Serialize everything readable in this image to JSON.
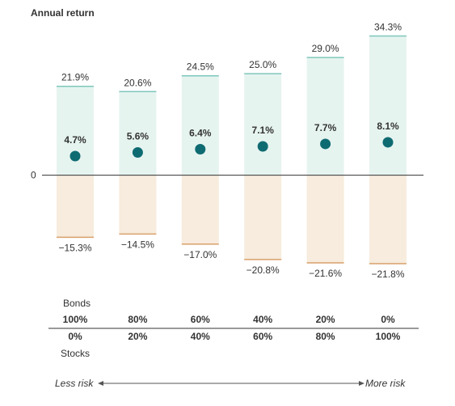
{
  "chart_data": {
    "type": "bar",
    "title": "Annual return",
    "zero_label": "0",
    "ylim": [
      -25,
      36
    ],
    "categories": [
      "100% bonds / 0% stocks",
      "80% bonds / 20% stocks",
      "60% bonds / 40% stocks",
      "40% bonds / 60% stocks",
      "20% bonds / 80% stocks",
      "0% bonds / 100% stocks"
    ],
    "high": [
      21.9,
      20.6,
      24.5,
      25.0,
      29.0,
      34.3
    ],
    "low": [
      -15.3,
      -14.5,
      -17.0,
      -20.8,
      -21.6,
      -21.8
    ],
    "average": [
      4.7,
      5.6,
      6.4,
      7.1,
      7.7,
      8.1
    ],
    "high_labels": [
      "21.9%",
      "20.6%",
      "24.5%",
      "25.0%",
      "29.0%",
      "34.3%"
    ],
    "low_labels": [
      "−15.3%",
      "−14.5%",
      "−17.0%",
      "−20.8%",
      "−21.6%",
      "−21.8%"
    ],
    "average_labels": [
      "4.7%",
      "5.6%",
      "6.4%",
      "7.1%",
      "7.7%",
      "8.1%"
    ],
    "bonds_label": "Bonds",
    "stocks_label": "Stocks",
    "bonds_pct": [
      "100%",
      "80%",
      "60%",
      "40%",
      "20%",
      "0%"
    ],
    "stocks_pct": [
      "0%",
      "20%",
      "40%",
      "60%",
      "80%",
      "100%"
    ],
    "risk_low_label": "Less risk",
    "risk_high_label": "More risk",
    "colors": {
      "positive_fill": "#e6f4f0",
      "positive_edge": "#7fc7bc",
      "negative_fill": "#f7ecdd",
      "negative_edge": "#d9a16b",
      "dot": "#0f6b72",
      "axis": "#333333",
      "text": "#333333"
    }
  }
}
